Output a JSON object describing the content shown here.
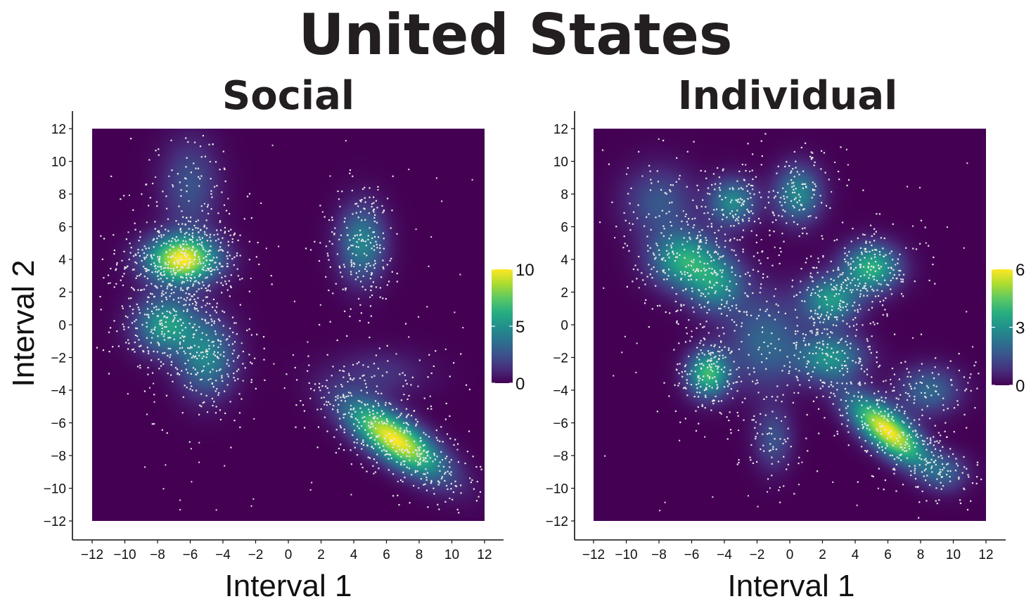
{
  "title": "United States",
  "colors": {
    "viridis": [
      "#440154",
      "#472d7b",
      "#3b528b",
      "#2c728e",
      "#21918c",
      "#28ae80",
      "#5ec962",
      "#addc30",
      "#fde725"
    ],
    "point": "#e8e8e8",
    "axis": "#111111"
  },
  "chart_data": [
    {
      "type": "heatmap",
      "title": "Social",
      "xlabel": "Interval 1",
      "ylabel": "Interval 2",
      "xlim": [
        -12,
        12
      ],
      "ylim": [
        -12,
        12
      ],
      "xticks": [
        "−12",
        "−10",
        "−8",
        "−6",
        "−4",
        "−2",
        "0",
        "2",
        "4",
        "6",
        "8",
        "10",
        "12"
      ],
      "yticks": [
        "12",
        "10",
        "8",
        "6",
        "4",
        "2",
        "0",
        "−2",
        "−4",
        "−6",
        "−8",
        "−10",
        "−12"
      ],
      "colorbar": {
        "min": 0,
        "max": 10,
        "ticks": [
          "10",
          "5",
          "0"
        ]
      },
      "clusters": [
        {
          "x": -6.5,
          "y": 4,
          "sx": 1.5,
          "sy": 1.0,
          "rot": 0,
          "weight": 10
        },
        {
          "x": -7.5,
          "y": 0,
          "sx": 1.3,
          "sy": 1.2,
          "rot": 0,
          "weight": 5.5
        },
        {
          "x": -5.0,
          "y": -2,
          "sx": 1.2,
          "sy": 1.6,
          "rot": 0,
          "weight": 4.5
        },
        {
          "x": -6.0,
          "y": 8.5,
          "sx": 1.2,
          "sy": 2.0,
          "rot": 0,
          "weight": 2.5
        },
        {
          "x": 4.5,
          "y": 5,
          "sx": 1.0,
          "sy": 1.6,
          "rot": 0,
          "weight": 4.5
        },
        {
          "x": 6.5,
          "y": -7,
          "sx": 2.4,
          "sy": 0.9,
          "rot": -35,
          "weight": 10
        },
        {
          "x": 5.5,
          "y": -3,
          "sx": 2.0,
          "sy": 1.0,
          "rot": 0,
          "weight": 1.5
        }
      ]
    },
    {
      "type": "heatmap",
      "title": "Individual",
      "xlabel": "Interval 1",
      "ylabel": "",
      "xlim": [
        -12,
        12
      ],
      "ylim": [
        -12,
        12
      ],
      "xticks": [
        "−12",
        "−10",
        "−8",
        "−6",
        "−4",
        "−2",
        "0",
        "2",
        "4",
        "6",
        "8",
        "10",
        "12"
      ],
      "yticks": [
        "12",
        "10",
        "8",
        "6",
        "4",
        "2",
        "0",
        "−2",
        "−4",
        "−6",
        "−8",
        "−10",
        "−12"
      ],
      "colorbar": {
        "min": 0,
        "max": 6,
        "ticks": [
          "6",
          "3",
          "0"
        ]
      },
      "clusters": [
        {
          "x": -6.5,
          "y": 4,
          "sx": 1.4,
          "sy": 1.2,
          "rot": 0,
          "weight": 3.5
        },
        {
          "x": -4.5,
          "y": 2.5,
          "sx": 1.2,
          "sy": 1.2,
          "rot": 0,
          "weight": 2.8
        },
        {
          "x": -5.0,
          "y": -3,
          "sx": 0.9,
          "sy": 1.0,
          "rot": 0,
          "weight": 4.0
        },
        {
          "x": -3.5,
          "y": 7.5,
          "sx": 1.0,
          "sy": 1.0,
          "rot": 0,
          "weight": 2.8
        },
        {
          "x": 0.5,
          "y": 8,
          "sx": 1.0,
          "sy": 1.2,
          "rot": 0,
          "weight": 2.8
        },
        {
          "x": 2.5,
          "y": 1.5,
          "sx": 1.2,
          "sy": 1.0,
          "rot": 0,
          "weight": 3.2
        },
        {
          "x": 5.0,
          "y": 3.5,
          "sx": 1.2,
          "sy": 1.0,
          "rot": 0,
          "weight": 3.8
        },
        {
          "x": 2.5,
          "y": -2,
          "sx": 1.4,
          "sy": 1.0,
          "rot": 0,
          "weight": 3.0
        },
        {
          "x": -1.5,
          "y": -1,
          "sx": 1.6,
          "sy": 2.0,
          "rot": 0,
          "weight": 2.0
        },
        {
          "x": 6.0,
          "y": -6.5,
          "sx": 2.0,
          "sy": 0.8,
          "rot": -40,
          "weight": 6.0
        },
        {
          "x": 8.5,
          "y": -4,
          "sx": 1.3,
          "sy": 1.0,
          "rot": 0,
          "weight": 2.0
        },
        {
          "x": -8.0,
          "y": 7.5,
          "sx": 1.5,
          "sy": 1.5,
          "rot": 0,
          "weight": 1.6
        },
        {
          "x": -1.0,
          "y": -7,
          "sx": 0.8,
          "sy": 1.3,
          "rot": 0,
          "weight": 1.5
        },
        {
          "x": 9.5,
          "y": -9,
          "sx": 1.0,
          "sy": 0.8,
          "rot": 0,
          "weight": 1.5
        }
      ]
    }
  ]
}
